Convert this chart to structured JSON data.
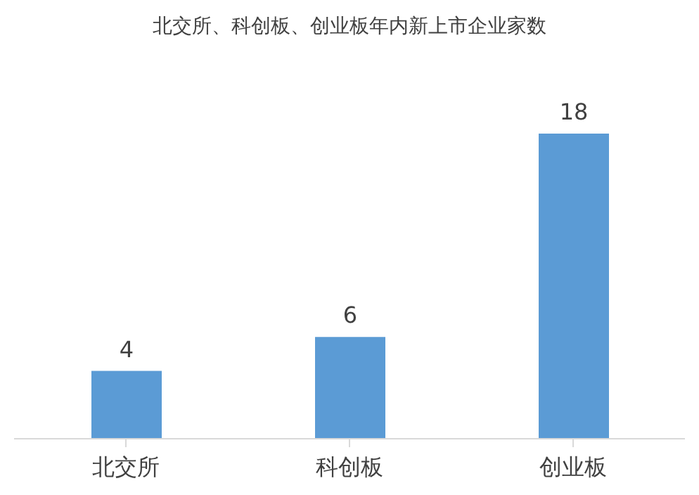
{
  "chart_data": {
    "type": "bar",
    "title": "北交所、科创板、创业板年内新上市企业家数",
    "categories": [
      "北交所",
      "科创板",
      "创业板"
    ],
    "values": [
      4,
      6,
      18
    ],
    "color": "#5b9bd5",
    "data_labels": true,
    "tick_labels": "x",
    "grid": false
  }
}
